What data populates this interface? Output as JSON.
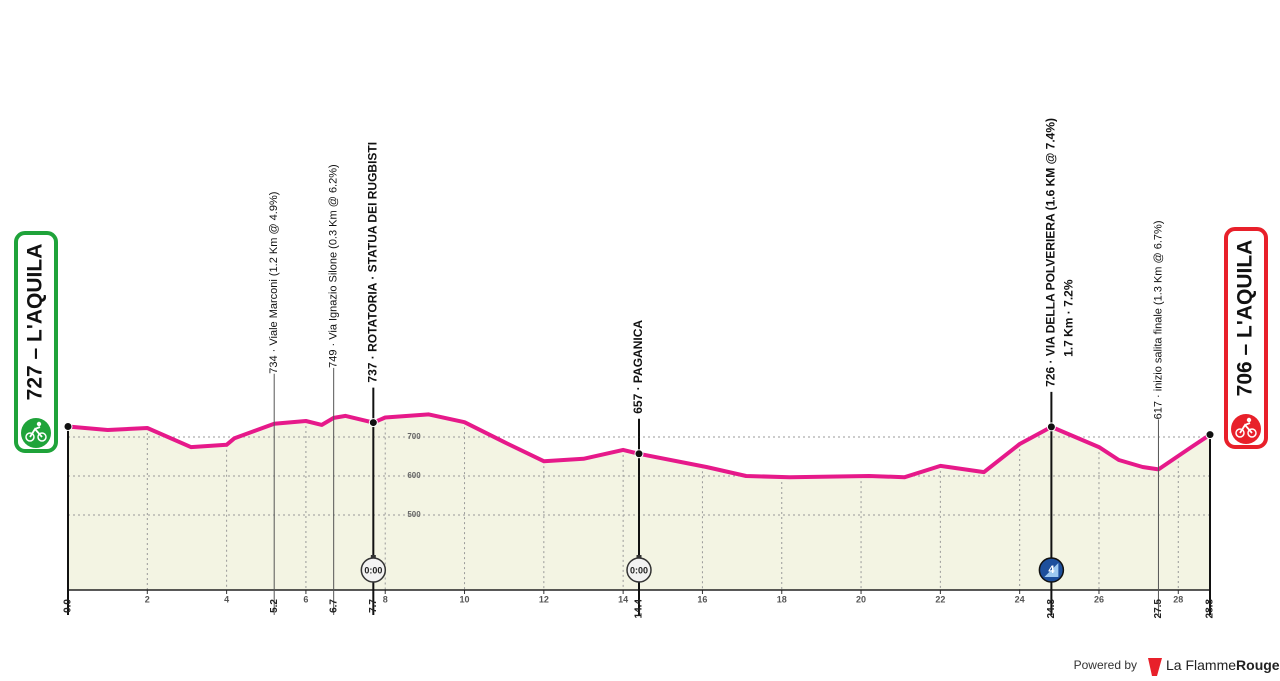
{
  "chart_data": {
    "type": "area",
    "color": "#e6198a",
    "fill": "#f3f4e3",
    "x": [
      0,
      1.0,
      2.0,
      3.1,
      4.0,
      4.2,
      5.2,
      6.0,
      6.4,
      6.7,
      7.0,
      7.7,
      8.0,
      9.1,
      10.0,
      11.0,
      12.0,
      13.0,
      14.0,
      14.4,
      16.1,
      17.1,
      18.2,
      20.2,
      21.1,
      22.0,
      23.1,
      24.0,
      24.8,
      26.0,
      26.5,
      27.1,
      27.5,
      28.3,
      28.8
    ],
    "values": [
      727,
      718,
      723,
      674,
      680,
      697,
      734,
      741,
      731,
      749,
      754,
      737,
      750,
      758,
      738,
      687,
      638,
      644,
      667,
      657,
      623,
      600,
      597,
      600,
      597,
      626,
      610,
      682,
      726,
      674,
      641,
      623,
      617,
      672,
      706
    ],
    "xlim": [
      0,
      28.8
    ],
    "ylim": [
      300,
      1000
    ],
    "xticks": [
      2,
      4,
      6,
      8,
      10,
      12,
      14,
      16,
      18,
      20,
      22,
      24,
      26,
      28
    ],
    "yticks": [
      500,
      600,
      700
    ],
    "grid": true,
    "start": {
      "label": "727 – L'AQUILA",
      "color": "#1fa33a"
    },
    "finish": {
      "label": "706 – L'AQUILA",
      "color": "#e8202a"
    },
    "waypoints": [
      {
        "km": {
          "value": 0,
          "label": "0.0"
        },
        "elevation": 727,
        "major": true
      },
      {
        "km": 5.2,
        "elevation": 734,
        "label": "734 · Viale Marconi (1.2 Km @ 4.9%)",
        "major": false
      },
      {
        "km": 6.7,
        "elevation": 749,
        "label": "749 · Via Ignazio Silone (0.3 Km @ 6.2%)",
        "major": false
      },
      {
        "km": 7.7,
        "elevation": 737,
        "label": "737 · ROTATORIA · STATUA DEI RUGBISTI",
        "major": true,
        "timer": "0:00"
      },
      {
        "km": 14.4,
        "elevation": 657,
        "label": "657 · PAGANICA",
        "major": true,
        "timer": "0:00"
      },
      {
        "km": 24.8,
        "elevation": 726,
        "label": "726 · VIA DELLA POLVERIERA (1.6 KM @ 7.4%)",
        "sublabel": "1.7 Km · 7.2%",
        "major": true,
        "category": "4"
      },
      {
        "km": 27.5,
        "elevation": 617,
        "label": "617 · inizio salita finale (1.3 Km @ 6.7%)",
        "major": false
      },
      {
        "km": 28.8,
        "elevation": 706,
        "major": true
      }
    ]
  },
  "footer": {
    "powered": "Powered by",
    "brand1": "La Flamme",
    "brand2": "Rouge"
  }
}
